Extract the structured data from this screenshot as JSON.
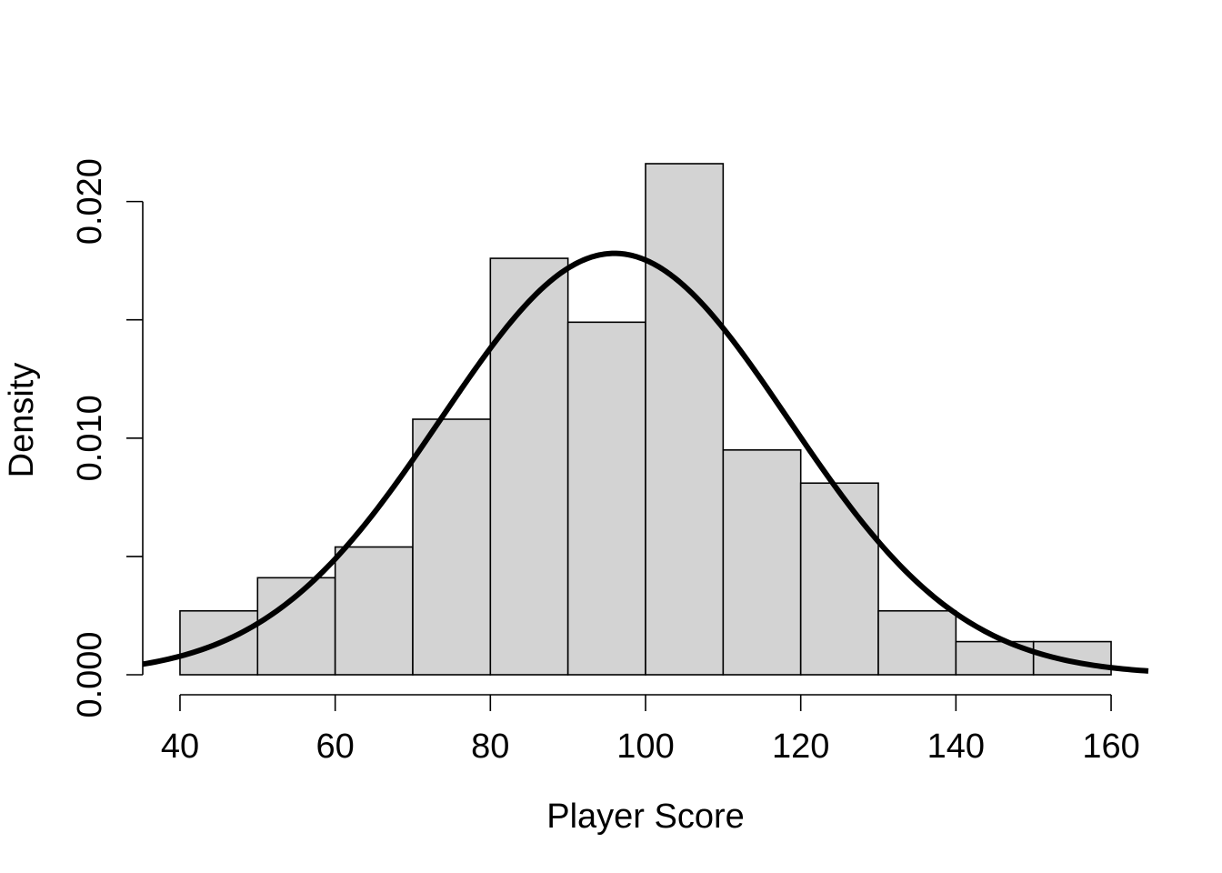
{
  "chart_data": {
    "type": "bar",
    "subtype": "histogram",
    "title": "",
    "xlabel": "Player Score",
    "ylabel": "Density",
    "bin_edges": [
      40,
      50,
      60,
      70,
      80,
      90,
      100,
      110,
      120,
      130,
      140,
      150,
      160
    ],
    "values": [
      0.0027,
      0.0041,
      0.0054,
      0.0108,
      0.0176,
      0.0149,
      0.0216,
      0.0095,
      0.0081,
      0.0027,
      0.0014,
      0.0014
    ],
    "xlim": [
      35.2,
      164.8
    ],
    "ylim": [
      0,
      0.0216
    ],
    "x_ticks": [
      40,
      60,
      80,
      100,
      120,
      140,
      160
    ],
    "x_tick_labels": [
      "40",
      "60",
      "80",
      "100",
      "120",
      "140",
      "160"
    ],
    "y_ticks": [
      0.0,
      0.005,
      0.01,
      0.015,
      0.02
    ],
    "y_tick_labels": [
      "0.000",
      "",
      "0.010",
      "",
      "0.020"
    ],
    "overlay": {
      "type": "normal-density-curve",
      "mean": 96,
      "sd": 22.4
    },
    "bar_color": "#d3d3d3",
    "line_color": "#000000",
    "grid": false,
    "legend": "none"
  }
}
